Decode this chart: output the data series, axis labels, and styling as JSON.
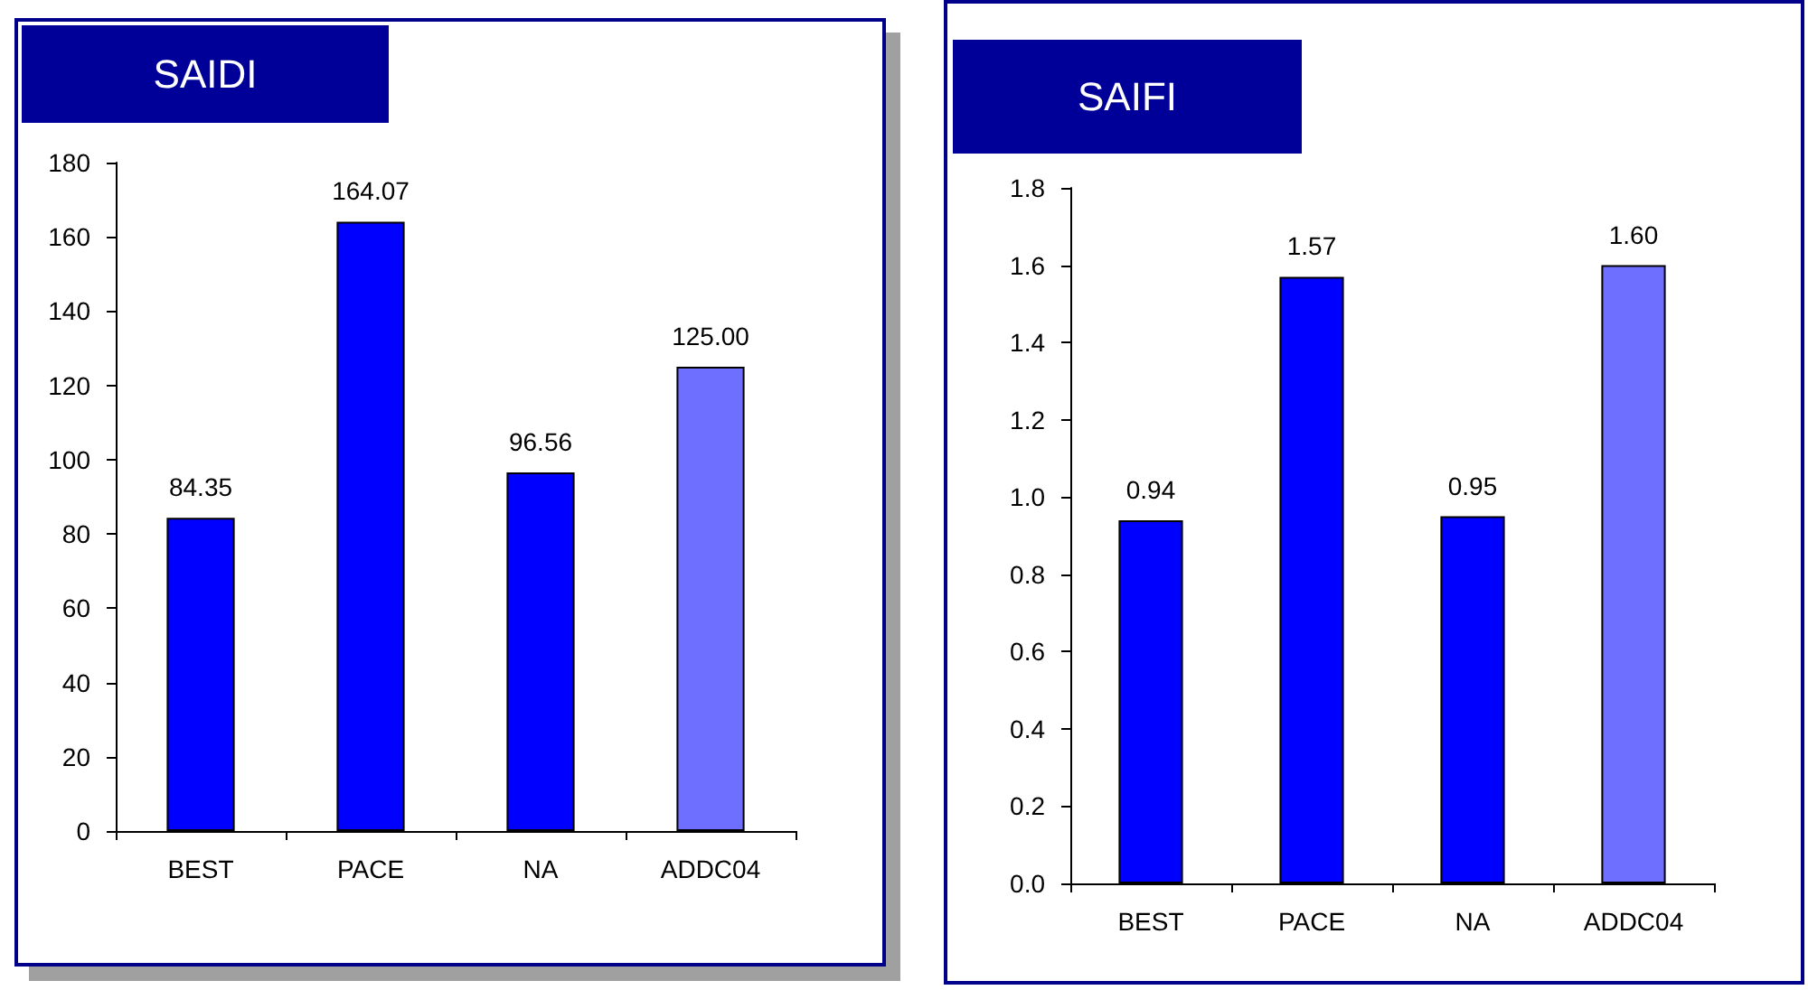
{
  "chart_data": [
    {
      "type": "bar",
      "title": "SAIDI",
      "categories": [
        "BEST",
        "PACE",
        "NA",
        "ADDC04"
      ],
      "values": [
        84.35,
        164.07,
        96.56,
        125.0
      ],
      "value_labels": [
        "84.35",
        "164.07",
        "96.56",
        "125.00"
      ],
      "colors": [
        "#0000ff",
        "#0000ff",
        "#0000ff",
        "#6f6fff"
      ],
      "ylim": [
        0,
        180
      ],
      "yticks": [
        0,
        20,
        40,
        60,
        80,
        100,
        120,
        140,
        160,
        180
      ],
      "grid": false
    },
    {
      "type": "bar",
      "title": "SAIFI",
      "categories": [
        "BEST",
        "PACE",
        "NA",
        "ADDC04"
      ],
      "values": [
        0.94,
        1.57,
        0.95,
        1.6
      ],
      "value_labels": [
        "0.94",
        "1.57",
        "0.95",
        "1.60"
      ],
      "colors": [
        "#0000ff",
        "#0000ff",
        "#0000ff",
        "#6f6fff"
      ],
      "ylim": [
        0,
        1.8
      ],
      "yticks": [
        {
          "value": 0,
          "label": "0.0"
        },
        {
          "value": 0.2,
          "label": "0.2"
        },
        {
          "value": 0.4,
          "label": "0.4"
        },
        {
          "value": 0.6,
          "label": "0.6"
        },
        {
          "value": 0.8,
          "label": "0.8"
        },
        {
          "value": 1.0,
          "label": "1.0"
        },
        {
          "value": 1.2,
          "label": "1.2"
        },
        {
          "value": 1.4,
          "label": "1.4"
        },
        {
          "value": 1.6,
          "label": "1.6"
        },
        {
          "value": 1.8,
          "label": "1.8"
        }
      ],
      "grid": false
    }
  ]
}
